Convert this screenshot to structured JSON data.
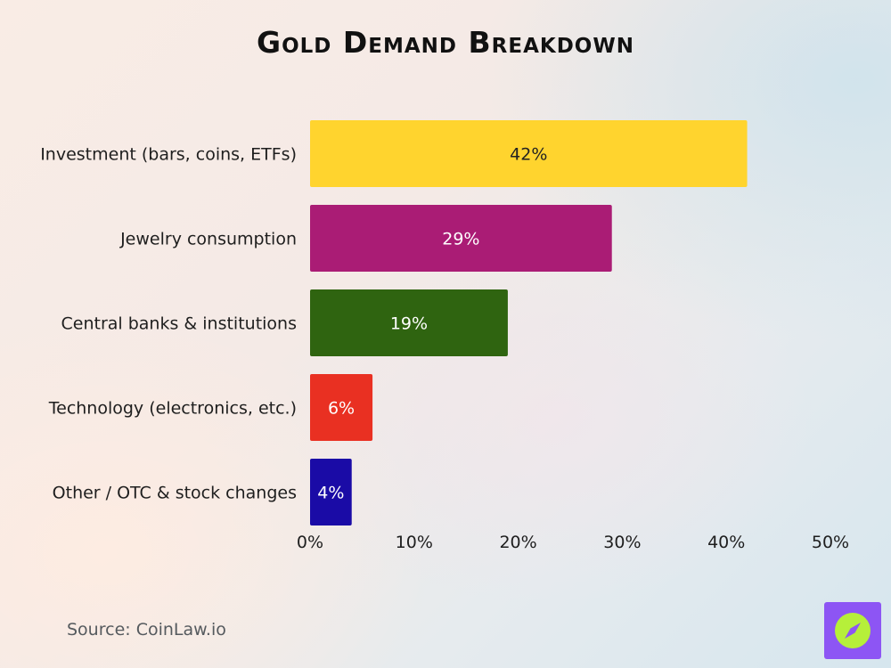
{
  "title": "Gold Demand Breakdown",
  "source": "Source: CoinLaw.io",
  "logo": {
    "icon": "compass-icon",
    "background": "#8D55F4",
    "accent": "#B6EF3A"
  },
  "chart_data": {
    "type": "bar",
    "orientation": "horizontal",
    "title": "Gold Demand Breakdown",
    "xlabel": "",
    "ylabel": "",
    "xlim": [
      0,
      50
    ],
    "x_ticks": [
      "0%",
      "10%",
      "20%",
      "30%",
      "40%",
      "50%"
    ],
    "grid": false,
    "legend": "none",
    "categories": [
      "Investment (bars, coins, ETFs)",
      "Jewelry consumption",
      "Central banks & institutions",
      "Technology (electronics, etc.)",
      "Other / OTC & stock changes"
    ],
    "values": [
      42,
      29,
      19,
      6,
      4
    ],
    "data_labels": [
      "42%",
      "29%",
      "19%",
      "6%",
      "4%"
    ],
    "colors": [
      "#FFD42E",
      "#AA1C75",
      "#2F6410",
      "#E93022",
      "#1A0BA6"
    ],
    "label_colors": [
      "#222222",
      "#FFFFFF",
      "#FFFFFF",
      "#FFFFFF",
      "#FFFFFF"
    ]
  }
}
